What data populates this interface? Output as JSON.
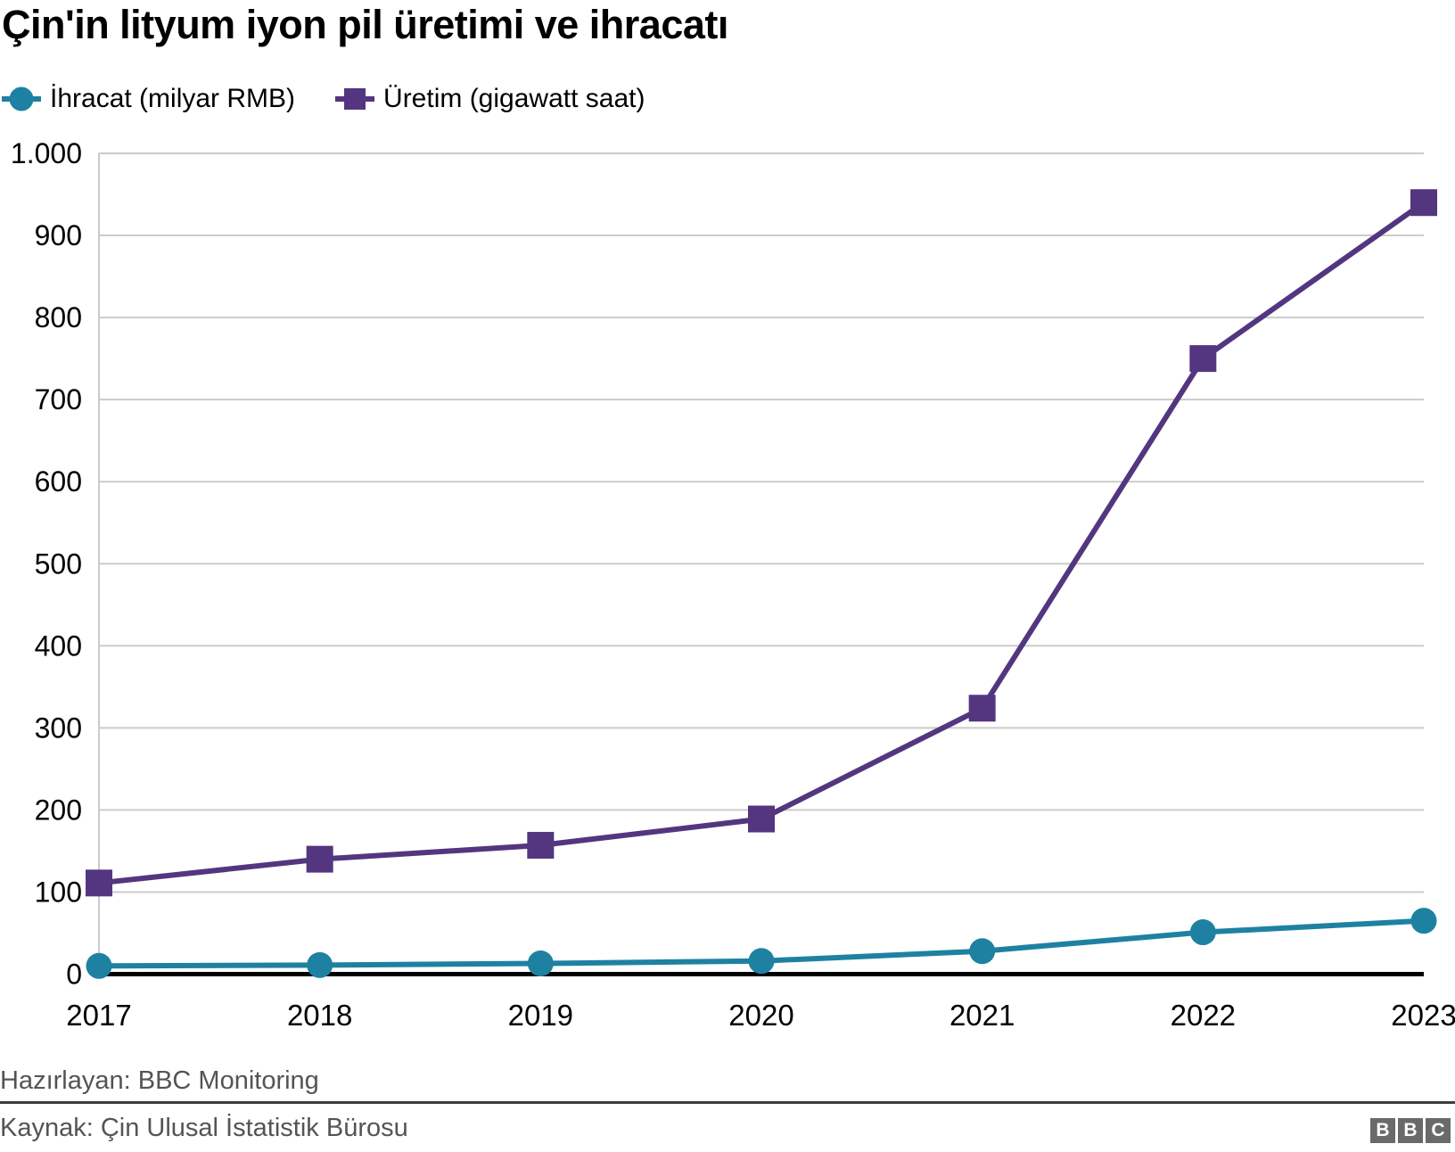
{
  "header": {
    "title": "Çin'in lityum iyon pil üretimi ve ihracatı"
  },
  "chart_data": {
    "type": "line",
    "title": "Çin'in lityum iyon pil üretimi ve ihracatı",
    "x": [
      "2017",
      "2018",
      "2019",
      "2020",
      "2021",
      "2022",
      "2023"
    ],
    "series": [
      {
        "name": "İhracat (milyar RMB)",
        "marker": "circle",
        "color": "#1e81a2",
        "values": [
          10,
          11,
          13,
          16,
          28,
          51,
          65
        ]
      },
      {
        "name": "Üretim (gigawatt saat)",
        "marker": "square",
        "color": "#53367f",
        "values": [
          111,
          140,
          157,
          189,
          324,
          750,
          940
        ]
      }
    ],
    "xlabel": "",
    "ylabel": "",
    "ylim": [
      0,
      1000
    ],
    "ytick_step": 100,
    "ytick_labels": [
      "0",
      "100",
      "200",
      "300",
      "400",
      "500",
      "600",
      "700",
      "800",
      "900",
      "1.000"
    ],
    "grid": "horizontal",
    "legend_position": "top-left"
  },
  "footer": {
    "attribution": "Hazırlayan: BBC Monitoring",
    "source": "Kaynak: Çin Ulusal İstatistik Bürosu",
    "logo_letters": [
      "B",
      "B",
      "C"
    ]
  },
  "colors": {
    "ihracat_teal": "#1e81a2",
    "uretim_purple": "#53367f",
    "gridline": "#cbcbcb",
    "axis_black": "#000000",
    "footer_text": "#545454",
    "divider": "#3d3d3d",
    "logo_bg": "#6a6a6a"
  }
}
